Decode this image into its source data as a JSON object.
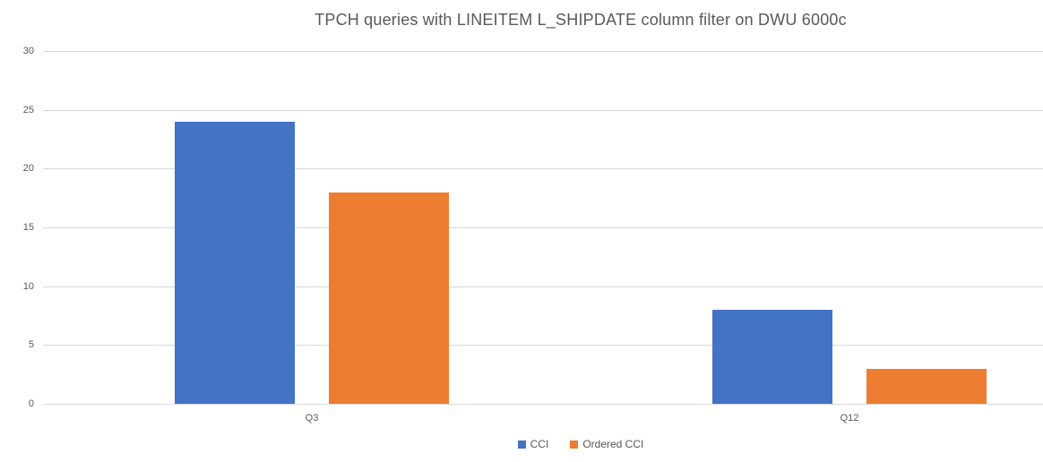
{
  "chart_data": {
    "type": "bar",
    "title": "TPCH queries with LINEITEM L_SHIPDATE column filter on DWU 6000c",
    "categories": [
      "Q3",
      "Q12"
    ],
    "series": [
      {
        "name": "CCI",
        "color": "#4472C4",
        "values": [
          24,
          8
        ]
      },
      {
        "name": "Ordered CCI",
        "color": "#ED7D31",
        "values": [
          18,
          3
        ]
      }
    ],
    "xlabel": "",
    "ylabel": "",
    "ylim": [
      0,
      30
    ],
    "yticks": [
      0,
      5,
      10,
      15,
      20,
      25,
      30
    ],
    "grid": true,
    "legend_position": "bottom"
  },
  "colors": {
    "background": "#FFFFFF",
    "gridline": "#D9D9D9",
    "axis_text": "#595959",
    "title_text": "#595959"
  }
}
